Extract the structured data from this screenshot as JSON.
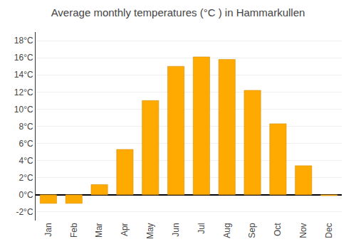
{
  "chart_data": {
    "type": "bar",
    "title": "Average monthly temperatures (°C ) in Hammarkullen",
    "categories": [
      "Jan",
      "Feb",
      "Mar",
      "Apr",
      "May",
      "Jun",
      "Jul",
      "Aug",
      "Sep",
      "Oct",
      "Nov",
      "Dec"
    ],
    "values": [
      -1.0,
      -1.0,
      1.2,
      5.3,
      11.0,
      15.0,
      16.1,
      15.8,
      12.2,
      8.3,
      3.4,
      -0.1
    ],
    "color": "#FFAA00",
    "ylim": [
      -3,
      19
    ],
    "yticks": [
      {
        "value": -2,
        "label": "-2°C"
      },
      {
        "value": 0,
        "label": "0°C"
      },
      {
        "value": 2,
        "label": "2°C"
      },
      {
        "value": 4,
        "label": "4°C"
      },
      {
        "value": 6,
        "label": "6°C"
      },
      {
        "value": 8,
        "label": "8°C"
      },
      {
        "value": 10,
        "label": "10°C"
      },
      {
        "value": 12,
        "label": "12°C"
      },
      {
        "value": 14,
        "label": "14°C"
      },
      {
        "value": 16,
        "label": "16°C"
      },
      {
        "value": 18,
        "label": "18°C"
      }
    ],
    "grid": true
  }
}
